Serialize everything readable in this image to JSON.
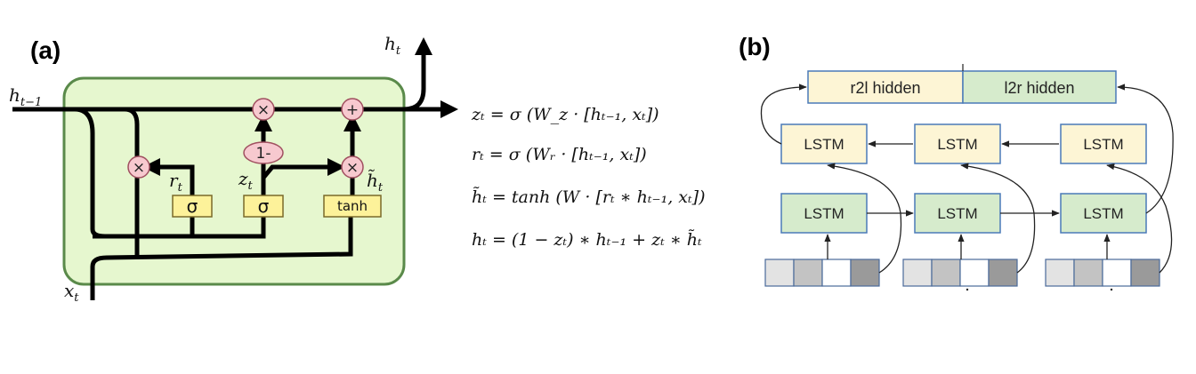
{
  "panel_a": {
    "label": "(a)",
    "labels": {
      "h_prev": "h",
      "h_prev_sub": "t−1",
      "h_out": "h",
      "h_out_sub": "t",
      "x_in": "x",
      "x_in_sub": "t",
      "r_label": "r",
      "r_sub": "t",
      "z_label": "z",
      "z_sub": "t",
      "htilde_label": "h̃",
      "htilde_sub": "t"
    },
    "ops": {
      "mult_symbol": "×",
      "plus_symbol": "+",
      "one_minus": "1-"
    },
    "gates": {
      "sigma_r": "σ",
      "sigma_z": "σ",
      "tanh": "tanh"
    },
    "colors": {
      "cell_fill": "#e6f7cf",
      "cell_border": "#5a8a4a",
      "gate_fill": "#fdf29a",
      "op_fill": "#f7c9cf"
    }
  },
  "equations": [
    "zₜ = σ (W_z · [hₜ₋₁, xₜ])",
    "rₜ = σ (Wᵣ · [hₜ₋₁, xₜ])",
    "h̃ₜ = tanh (W · [rₜ ∗ hₜ₋₁, xₜ])",
    "hₜ = (1 − zₜ) ∗ hₜ₋₁ + zₜ ∗ h̃ₜ"
  ],
  "panel_b": {
    "label": "(b)",
    "r2l_hidden": "r2l hidden",
    "l2r_hidden": "l2r hidden",
    "lstm_label": "LSTM",
    "colors": {
      "r2l_fill": "#fdf5d5",
      "l2r_fill": "#d6ebcc",
      "box_border": "#4a7ab8",
      "token_light": "#e3e3e3",
      "token_mid": "#c3c3c3",
      "token_white": "#ffffff",
      "token_dark": "#9a9a9a"
    }
  }
}
